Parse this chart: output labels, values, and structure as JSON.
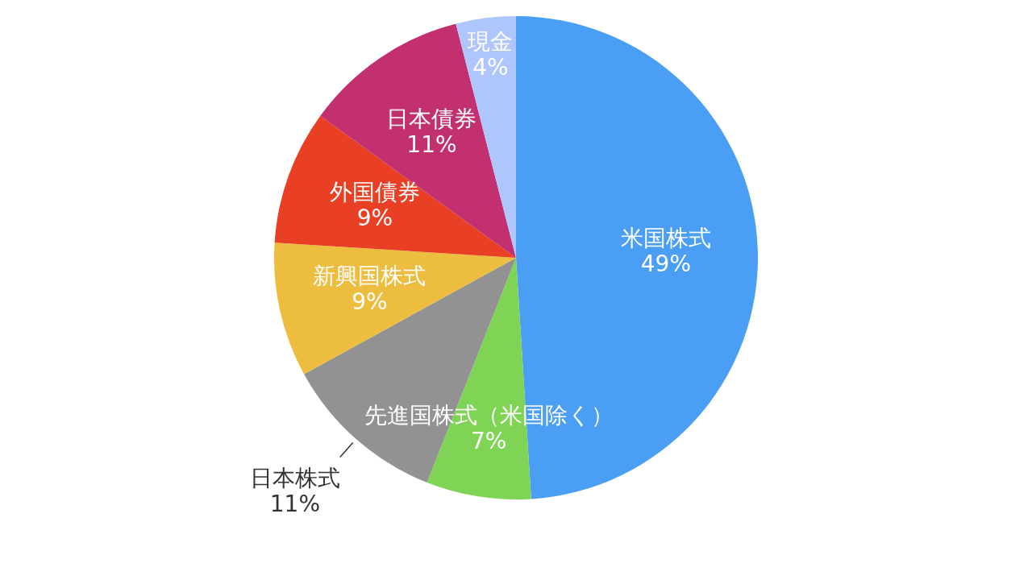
{
  "chart_data": {
    "type": "pie",
    "categories": [
      "米国株式",
      "先進国株式（米国除く）",
      "日本株式",
      "新興国株式",
      "外国債券",
      "日本債券",
      "現金"
    ],
    "values": [
      49,
      7,
      11,
      9,
      9,
      11,
      4
    ],
    "colors": [
      "#4a9ff5",
      "#80d455",
      "#929292",
      "#edbd40",
      "#e94025",
      "#c23070",
      "#aec6fb"
    ],
    "value_labels": [
      "49%",
      "7%",
      "11%",
      "9%",
      "9%",
      "11%",
      "4%"
    ],
    "legend": false
  }
}
